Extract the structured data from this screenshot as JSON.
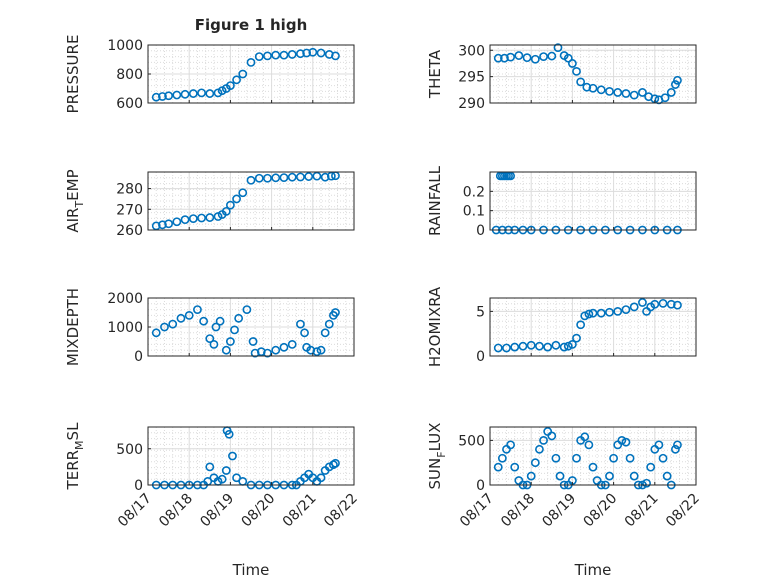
{
  "figure": {
    "title": "Figure 1 high",
    "xlabel": "Time"
  },
  "colors": {
    "marker": "#0072bd",
    "grid": "#dcdcdc",
    "axis": "#262626"
  },
  "chart_data": [
    {
      "type": "scatter",
      "ylabel": "PRESSURE",
      "ylim": [
        600,
        1000
      ],
      "yticks": [
        {
          "v": 600,
          "label": "600"
        },
        {
          "v": 800,
          "label": "800"
        },
        {
          "v": 1000,
          "label": "1000"
        }
      ],
      "xlim": [
        0,
        5
      ],
      "xticks": [
        "08/17",
        "08/18",
        "08/19",
        "08/20",
        "08/21",
        "08/22"
      ],
      "grid": true,
      "x": [
        0.2,
        0.35,
        0.5,
        0.7,
        0.9,
        1.1,
        1.3,
        1.5,
        1.7,
        1.8,
        1.9,
        2.0,
        2.15,
        2.3,
        2.5,
        2.7,
        2.9,
        3.1,
        3.3,
        3.5,
        3.7,
        3.85,
        4.0,
        4.2,
        4.4,
        4.55
      ],
      "y": [
        640,
        645,
        650,
        655,
        660,
        665,
        670,
        665,
        670,
        685,
        700,
        720,
        760,
        800,
        880,
        920,
        925,
        930,
        930,
        935,
        940,
        945,
        950,
        945,
        935,
        925
      ]
    },
    {
      "type": "scatter",
      "ylabel": "THETA",
      "ylim": [
        290,
        301
      ],
      "yticks": [
        {
          "v": 290,
          "label": "290"
        },
        {
          "v": 295,
          "label": "295"
        },
        {
          "v": 300,
          "label": "300"
        }
      ],
      "xlim": [
        0,
        5
      ],
      "xticks": [
        "08/17",
        "08/18",
        "08/19",
        "08/20",
        "08/21",
        "08/22"
      ],
      "grid": true,
      "x": [
        0.2,
        0.35,
        0.5,
        0.7,
        0.9,
        1.1,
        1.3,
        1.5,
        1.65,
        1.8,
        1.9,
        2.0,
        2.1,
        2.2,
        2.35,
        2.5,
        2.7,
        2.9,
        3.1,
        3.3,
        3.5,
        3.7,
        3.85,
        4.0,
        4.1,
        4.25,
        4.4,
        4.5,
        4.55
      ],
      "y": [
        298.5,
        298.5,
        298.7,
        299.0,
        298.6,
        298.3,
        298.8,
        298.9,
        300.5,
        299.0,
        298.5,
        297.5,
        296.0,
        294.0,
        293.0,
        292.8,
        292.5,
        292.2,
        292.0,
        291.8,
        291.5,
        292.0,
        291.2,
        290.8,
        290.6,
        291.0,
        292.0,
        293.5,
        294.3
      ]
    },
    {
      "type": "scatter",
      "ylabel": "AIR_TEMP",
      "ylim": [
        260,
        288
      ],
      "yticks": [
        {
          "v": 260,
          "label": "260"
        },
        {
          "v": 270,
          "label": "270"
        },
        {
          "v": 280,
          "label": "280"
        }
      ],
      "xlim": [
        0,
        5
      ],
      "xticks": [
        "08/17",
        "08/18",
        "08/19",
        "08/20",
        "08/21",
        "08/22"
      ],
      "grid": true,
      "x": [
        0.2,
        0.35,
        0.5,
        0.7,
        0.9,
        1.1,
        1.3,
        1.5,
        1.7,
        1.8,
        1.9,
        2.0,
        2.15,
        2.3,
        2.5,
        2.7,
        2.9,
        3.1,
        3.3,
        3.5,
        3.7,
        3.9,
        4.1,
        4.3,
        4.45,
        4.55
      ],
      "y": [
        262.0,
        262.5,
        263.0,
        264.0,
        265.0,
        265.5,
        265.8,
        266.0,
        266.5,
        267.5,
        269.0,
        272.0,
        275.0,
        278.0,
        284.0,
        285.0,
        285.0,
        285.2,
        285.3,
        285.5,
        285.6,
        285.8,
        286.0,
        285.5,
        286.0,
        286.2
      ]
    },
    {
      "type": "scatter",
      "ylabel": "RAINFALL",
      "ylim": [
        0,
        0.3
      ],
      "yticks": [
        {
          "v": 0,
          "label": "0"
        },
        {
          "v": 0.1,
          "label": "0.1"
        },
        {
          "v": 0.2,
          "label": "0.2"
        }
      ],
      "xlim": [
        0,
        5
      ],
      "xticks": [
        "08/17",
        "08/18",
        "08/19",
        "08/20",
        "08/21",
        "08/22"
      ],
      "grid": true,
      "x": [
        0.15,
        0.3,
        0.45,
        0.6,
        0.8,
        1.0,
        1.3,
        1.6,
        1.9,
        2.2,
        2.5,
        2.8,
        3.1,
        3.4,
        3.7,
        4.0,
        4.3,
        4.55,
        0.25,
        0.3,
        0.35,
        0.4,
        0.45,
        0.5
      ],
      "y": [
        0,
        0,
        0,
        0,
        0,
        0,
        0,
        0,
        0,
        0,
        0,
        0,
        0,
        0,
        0,
        0,
        0,
        0,
        0.28,
        0.28,
        0.28,
        0.28,
        0.28,
        0.28
      ]
    },
    {
      "type": "scatter",
      "ylabel": "MIXDEPTH",
      "ylim": [
        0,
        2000
      ],
      "yticks": [
        {
          "v": 0,
          "label": "0"
        },
        {
          "v": 1000,
          "label": "1000"
        },
        {
          "v": 2000,
          "label": "2000"
        }
      ],
      "xlim": [
        0,
        5
      ],
      "xticks": [
        "08/17",
        "08/18",
        "08/19",
        "08/20",
        "08/21",
        "08/22"
      ],
      "grid": true,
      "x": [
        0.2,
        0.4,
        0.6,
        0.8,
        1.0,
        1.2,
        1.35,
        1.5,
        1.6,
        1.65,
        1.75,
        1.9,
        2.0,
        2.1,
        2.2,
        2.4,
        2.55,
        2.6,
        2.75,
        2.9,
        3.1,
        3.3,
        3.5,
        3.7,
        3.8,
        3.85,
        3.95,
        4.1,
        4.2,
        4.3,
        4.4,
        4.5,
        4.55
      ],
      "y": [
        800,
        1000,
        1100,
        1300,
        1400,
        1600,
        1200,
        600,
        400,
        1000,
        1200,
        200,
        500,
        900,
        1300,
        1600,
        500,
        100,
        150,
        100,
        200,
        300,
        400,
        1100,
        800,
        300,
        200,
        150,
        200,
        800,
        1100,
        1400,
        1500
      ]
    },
    {
      "type": "scatter",
      "ylabel": "H2OMIXRA",
      "ylim": [
        0,
        6.5
      ],
      "yticks": [
        {
          "v": 0,
          "label": "0"
        },
        {
          "v": 5,
          "label": "5"
        }
      ],
      "xlim": [
        0,
        5
      ],
      "xticks": [
        "08/17",
        "08/18",
        "08/19",
        "08/20",
        "08/21",
        "08/22"
      ],
      "grid": true,
      "x": [
        0.2,
        0.4,
        0.6,
        0.8,
        1.0,
        1.2,
        1.4,
        1.6,
        1.8,
        1.9,
        2.0,
        2.1,
        2.2,
        2.3,
        2.4,
        2.5,
        2.7,
        2.9,
        3.1,
        3.3,
        3.5,
        3.7,
        3.8,
        3.9,
        4.0,
        4.2,
        4.4,
        4.55
      ],
      "y": [
        0.9,
        0.9,
        1.0,
        1.1,
        1.2,
        1.1,
        1.0,
        1.2,
        1.0,
        1.1,
        1.3,
        2.0,
        3.5,
        4.5,
        4.7,
        4.8,
        4.8,
        4.9,
        5.0,
        5.2,
        5.5,
        6.0,
        5.0,
        5.5,
        5.8,
        5.9,
        5.8,
        5.7
      ]
    },
    {
      "type": "scatter",
      "ylabel": "TERR_MSL",
      "ylim": [
        0,
        800
      ],
      "yticks": [
        {
          "v": 0,
          "label": "0"
        },
        {
          "v": 500,
          "label": "500"
        }
      ],
      "xlim": [
        0,
        5
      ],
      "xticks": [
        "08/17",
        "08/18",
        "08/19",
        "08/20",
        "08/21",
        "08/22"
      ],
      "grid": true,
      "x": [
        0.2,
        0.4,
        0.6,
        0.8,
        1.0,
        1.2,
        1.35,
        1.45,
        1.5,
        1.6,
        1.7,
        1.8,
        1.9,
        1.92,
        1.97,
        2.05,
        2.15,
        2.3,
        2.5,
        2.7,
        2.9,
        3.1,
        3.3,
        3.5,
        3.6,
        3.7,
        3.8,
        3.9,
        4.0,
        4.1,
        4.2,
        4.3,
        4.4,
        4.5,
        4.55
      ],
      "y": [
        0,
        0,
        0,
        0,
        0,
        0,
        0,
        50,
        250,
        100,
        50,
        80,
        200,
        750,
        700,
        400,
        100,
        50,
        0,
        0,
        0,
        0,
        0,
        0,
        0,
        50,
        100,
        150,
        100,
        50,
        100,
        200,
        250,
        280,
        300
      ]
    },
    {
      "type": "scatter",
      "ylabel": "SUN_FLUX",
      "ylim": [
        0,
        650
      ],
      "yticks": [
        {
          "v": 0,
          "label": "0"
        },
        {
          "v": 500,
          "label": "500"
        }
      ],
      "xlim": [
        0,
        5
      ],
      "xticks": [
        "08/17",
        "08/18",
        "08/19",
        "08/20",
        "08/21",
        "08/22"
      ],
      "grid": true,
      "x": [
        0.2,
        0.3,
        0.4,
        0.5,
        0.6,
        0.7,
        0.8,
        0.9,
        1.0,
        1.1,
        1.2,
        1.3,
        1.4,
        1.5,
        1.6,
        1.7,
        1.8,
        1.9,
        2.0,
        2.1,
        2.2,
        2.3,
        2.4,
        2.5,
        2.6,
        2.7,
        2.8,
        2.9,
        3.0,
        3.1,
        3.2,
        3.3,
        3.4,
        3.5,
        3.6,
        3.7,
        3.8,
        3.9,
        4.0,
        4.1,
        4.2,
        4.3,
        4.4,
        4.5,
        4.55
      ],
      "y": [
        200,
        300,
        400,
        450,
        200,
        50,
        0,
        0,
        100,
        250,
        400,
        500,
        600,
        550,
        300,
        100,
        0,
        0,
        50,
        300,
        500,
        540,
        450,
        200,
        50,
        0,
        0,
        100,
        300,
        450,
        500,
        480,
        300,
        100,
        0,
        0,
        20,
        200,
        400,
        450,
        300,
        100,
        0,
        400,
        450
      ]
    }
  ]
}
